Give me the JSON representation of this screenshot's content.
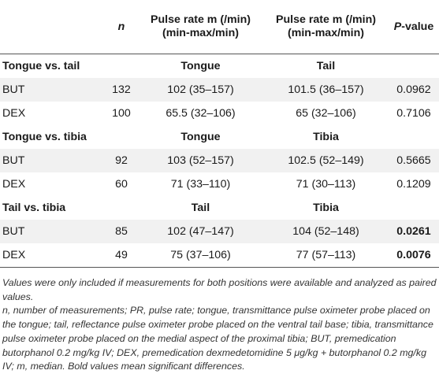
{
  "header": {
    "col_label": "",
    "col_n": "n",
    "col_first_line1": "Pulse rate m (/min)",
    "col_first_line2": "(min-max/min)",
    "col_second_line1": "Pulse rate m (/min)",
    "col_second_line2": "(min-max/min)",
    "col_p_italic": "P",
    "col_p_rest": "-value"
  },
  "sections": [
    {
      "title": "Tongue vs. tail",
      "left_site": "Tongue",
      "right_site": "Tail",
      "rows": [
        {
          "label": "BUT",
          "n": "132",
          "left": "102 (35–157)",
          "right": "101.5 (36–157)",
          "p": "0.0962",
          "sig": false
        },
        {
          "label": "DEX",
          "n": "100",
          "left": "65.5 (32–106)",
          "right": "65 (32–106)",
          "p": "0.7106",
          "sig": false
        }
      ]
    },
    {
      "title": "Tongue vs. tibia",
      "left_site": "Tongue",
      "right_site": "Tibia",
      "rows": [
        {
          "label": "BUT",
          "n": "92",
          "left": "103 (52–157)",
          "right": "102.5 (52–149)",
          "p": "0.5665",
          "sig": false
        },
        {
          "label": "DEX",
          "n": "60",
          "left": "71 (33–110)",
          "right": "71 (30–113)",
          "p": "0.1209",
          "sig": false
        }
      ]
    },
    {
      "title": "Tail vs. tibia",
      "left_site": "Tail",
      "right_site": "Tibia",
      "rows": [
        {
          "label": "BUT",
          "n": "85",
          "left": "102 (47–147)",
          "right": "104 (52–148)",
          "p": "0.0261",
          "sig": true
        },
        {
          "label": "DEX",
          "n": "49",
          "left": "75 (37–106)",
          "right": "77 (57–113)",
          "p": "0.0076",
          "sig": true
        }
      ]
    }
  ],
  "notes": {
    "first": "Values were only included if measurements for both positions were available and analyzed as paired values.",
    "second": "n, number of measurements; PR, pulse rate; tongue, transmittance pulse oximeter probe placed on the tongue; tail, reflectance pulse oximeter probe placed on the ventral tail base; tibia, transmittance pulse oximeter probe placed on the medial aspect of the proximal tibia; BUT, premedication butorphanol 0.2 mg/kg IV; DEX, premedication dexmedetomidine 5 μg/kg + butorphanol 0.2 mg/kg IV; m, median. Bold values mean significant differences."
  }
}
